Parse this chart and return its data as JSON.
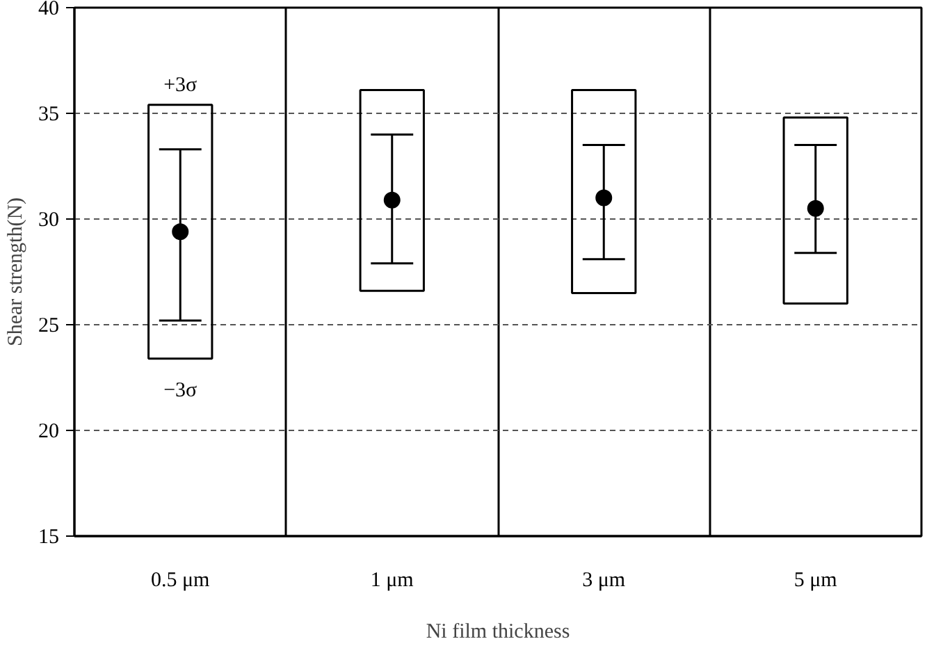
{
  "chart_data": {
    "type": "bar",
    "xlabel": "Ni film thickness",
    "ylabel": "Shear strength(N)",
    "categories": [
      "0.5 μm",
      "1 μm",
      "3 μm",
      "5 μm"
    ],
    "series": [
      {
        "color": "#000000",
        "base": [
          23.4,
          26.6,
          26.5,
          26.0
        ],
        "values": [
          12.0,
          9.5,
          9.6,
          8.8
        ]
      },
      {
        "type": "scatter",
        "color": "#000000",
        "marker": "circle",
        "values": [
          29.4,
          30.9,
          31.0,
          30.5
        ],
        "errors": [
          [
            25.2,
            33.3
          ],
          [
            27.9,
            34.0
          ],
          [
            28.1,
            33.5
          ],
          [
            28.4,
            33.5
          ]
        ]
      }
    ],
    "ylim": [
      15,
      40
    ],
    "yticks": [
      15,
      20,
      25,
      30,
      35,
      40
    ],
    "grid": "y",
    "annotations": [
      "+3σ",
      "−3σ"
    ]
  }
}
